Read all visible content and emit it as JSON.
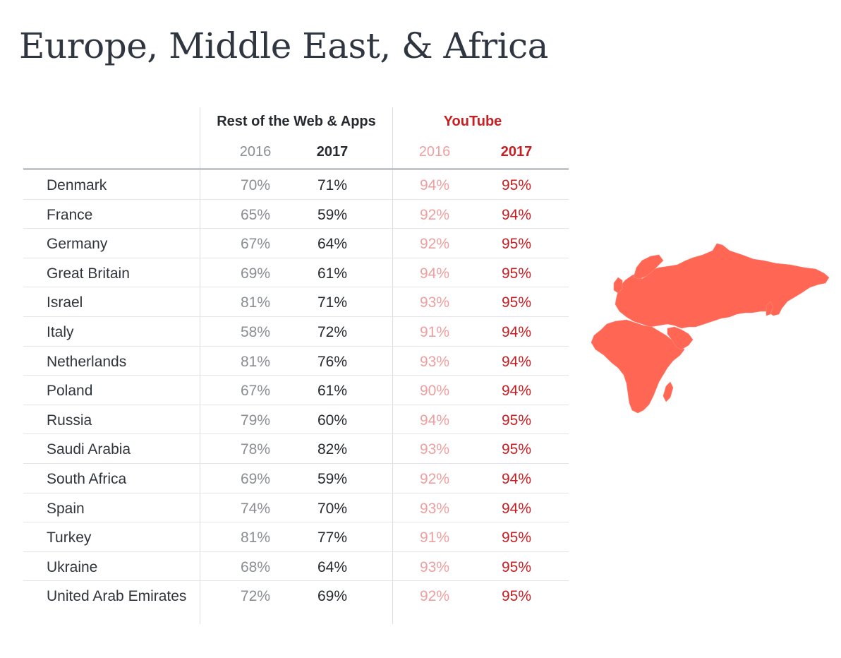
{
  "title": "Europe, Middle East, & Africa",
  "colors": {
    "title": "#2f3640",
    "web_2016": "#8a8d92",
    "web_2017": "#262a2f",
    "youtube_2016": "#eea0a0",
    "youtube_2017": "#c81e22",
    "map": "#ff6654"
  },
  "chart_data": {
    "type": "table",
    "title": "Europe, Middle East, & Africa",
    "column_groups": [
      {
        "name": "Rest of the Web & Apps",
        "years": [
          "2016",
          "2017"
        ]
      },
      {
        "name": "YouTube",
        "years": [
          "2016",
          "2017"
        ]
      }
    ],
    "rows": [
      {
        "country": "Denmark",
        "web_2016": "70%",
        "web_2017": "71%",
        "yt_2016": "94%",
        "yt_2017": "95%"
      },
      {
        "country": "France",
        "web_2016": "65%",
        "web_2017": "59%",
        "yt_2016": "92%",
        "yt_2017": "94%"
      },
      {
        "country": "Germany",
        "web_2016": "67%",
        "web_2017": "64%",
        "yt_2016": "92%",
        "yt_2017": "95%"
      },
      {
        "country": "Great Britain",
        "web_2016": "69%",
        "web_2017": "61%",
        "yt_2016": "94%",
        "yt_2017": "95%"
      },
      {
        "country": "Israel",
        "web_2016": "81%",
        "web_2017": "71%",
        "yt_2016": "93%",
        "yt_2017": "95%"
      },
      {
        "country": "Italy",
        "web_2016": "58%",
        "web_2017": "72%",
        "yt_2016": "91%",
        "yt_2017": "94%"
      },
      {
        "country": "Netherlands",
        "web_2016": "81%",
        "web_2017": "76%",
        "yt_2016": "93%",
        "yt_2017": "94%"
      },
      {
        "country": "Poland",
        "web_2016": "67%",
        "web_2017": "61%",
        "yt_2016": "90%",
        "yt_2017": "94%"
      },
      {
        "country": "Russia",
        "web_2016": "79%",
        "web_2017": "60%",
        "yt_2016": "94%",
        "yt_2017": "95%"
      },
      {
        "country": "Saudi Arabia",
        "web_2016": "78%",
        "web_2017": "82%",
        "yt_2016": "93%",
        "yt_2017": "95%"
      },
      {
        "country": "South Africa",
        "web_2016": "69%",
        "web_2017": "59%",
        "yt_2016": "92%",
        "yt_2017": "94%"
      },
      {
        "country": "Spain",
        "web_2016": "74%",
        "web_2017": "70%",
        "yt_2016": "93%",
        "yt_2017": "94%"
      },
      {
        "country": "Turkey",
        "web_2016": "81%",
        "web_2017": "77%",
        "yt_2016": "91%",
        "yt_2017": "95%"
      },
      {
        "country": "Ukraine",
        "web_2016": "68%",
        "web_2017": "64%",
        "yt_2016": "93%",
        "yt_2017": "95%"
      },
      {
        "country": "United Arab Emirates",
        "web_2016": "72%",
        "web_2017": "69%",
        "yt_2016": "92%",
        "yt_2017": "95%"
      }
    ]
  }
}
